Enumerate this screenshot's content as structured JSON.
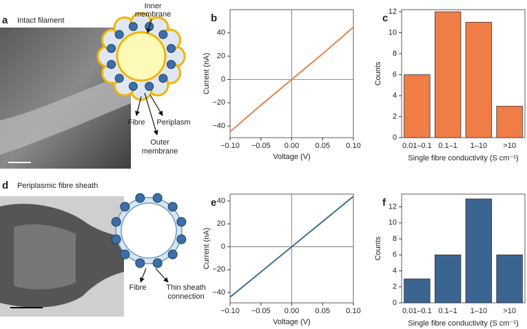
{
  "panels": {
    "a": {
      "label": "a",
      "title": "Intact filament",
      "annotations": [
        "Inner",
        "membrane",
        "Fibre",
        "Periplasm",
        "Outer",
        "membrane"
      ]
    },
    "d": {
      "label": "d",
      "title": "Periplasmic fibre sheath",
      "annotations": [
        "Fibre",
        "Thin sheath",
        "connection"
      ]
    }
  },
  "chart_data": [
    {
      "type": "line",
      "panel_label": "b",
      "x": [
        -0.1,
        -0.05,
        0,
        0.05,
        0.1
      ],
      "values": [
        -45,
        -22,
        0,
        22,
        45
      ],
      "color": "#e8804a",
      "xlim": [
        -0.1,
        0.1
      ],
      "ylim": [
        -50,
        60
      ],
      "xticks": [
        {
          "value": -0.1,
          "label": "−0.10"
        },
        {
          "value": -0.05,
          "label": "−0.05"
        },
        {
          "value": 0,
          "label": "0.00"
        },
        0.05,
        {
          "value": 0.1,
          "label": "0.10"
        }
      ],
      "yticks": [
        {
          "value": -40,
          "label": "−40"
        },
        {
          "value": -20,
          "label": "−20"
        },
        0,
        20,
        40
      ],
      "x_label": "Voltage (V)",
      "y_label": "Current (nA)"
    },
    {
      "type": "bar",
      "panel_label": "c",
      "categories": [
        "0.01–0.1",
        "0.1–1",
        "1–10",
        ">10"
      ],
      "values": [
        6,
        12,
        11,
        3
      ],
      "color": "#f07d45",
      "ylim": [
        0,
        12.2
      ],
      "yticks": [
        0,
        2,
        4,
        6,
        8,
        10,
        12
      ],
      "x_label": "Single fibre conductivity (S cm⁻¹)",
      "y_label": "Counts"
    },
    {
      "type": "line",
      "panel_label": "e",
      "x": [
        -0.1,
        -0.05,
        0,
        0.05,
        0.1
      ],
      "values": [
        -44,
        -22,
        0,
        22,
        44
      ],
      "color": "#3f6f93",
      "xlim": [
        -0.1,
        0.1
      ],
      "ylim": [
        -49,
        46
      ],
      "xticks": [
        {
          "value": -0.1,
          "label": "−0.10"
        },
        {
          "value": -0.05,
          "label": "−0.05"
        },
        {
          "value": 0,
          "label": "0.00"
        },
        0.05,
        {
          "value": 0.1,
          "label": "0.10"
        }
      ],
      "yticks": [
        {
          "value": -40,
          "label": "−40"
        },
        {
          "value": -20,
          "label": "−20"
        },
        0,
        20,
        40
      ],
      "x_label": "Voltage (V)",
      "y_label": "Current (nA)"
    },
    {
      "type": "bar",
      "panel_label": "f",
      "categories": [
        "0.01–0.1",
        "0.1–1",
        "1–10",
        ">10"
      ],
      "values": [
        3,
        6,
        13,
        6
      ],
      "color": "#3a6590",
      "ylim": [
        0,
        13.6
      ],
      "yticks": [
        0,
        2,
        4,
        6,
        8,
        10,
        12
      ],
      "x_label": "Single fibre conductivity (S cm⁻¹)",
      "y_label": "Counts"
    }
  ]
}
